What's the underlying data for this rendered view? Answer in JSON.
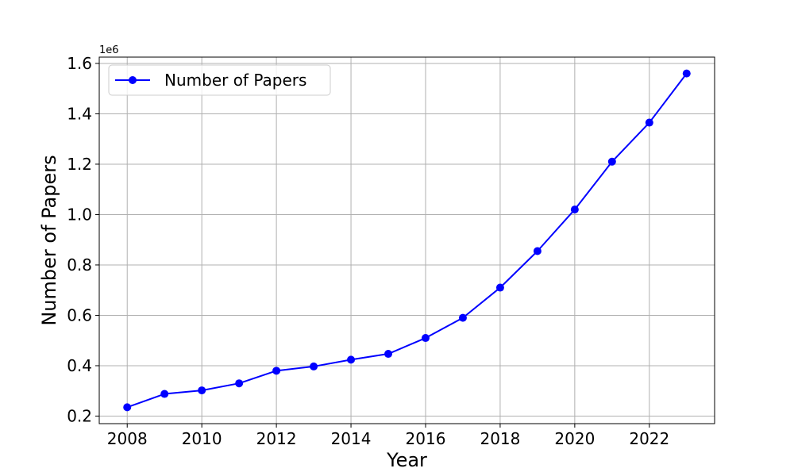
{
  "chart_data": {
    "type": "line",
    "title": "",
    "xlabel": "Year",
    "ylabel": "Number of Papers",
    "y_offset_label": "1e6",
    "x": [
      2008,
      2009,
      2010,
      2011,
      2012,
      2013,
      2014,
      2015,
      2016,
      2017,
      2018,
      2019,
      2020,
      2021,
      2022,
      2023
    ],
    "series": [
      {
        "name": "Number of Papers",
        "color": "#0000ff",
        "marker": "circle",
        "values": [
          235000,
          288000,
          302000,
          330000,
          380000,
          397000,
          424000,
          447000,
          510000,
          590000,
          710000,
          855000,
          1020000,
          1210000,
          1365000,
          1560000
        ]
      }
    ],
    "xlim": [
      2007.25,
      2023.75
    ],
    "ylim": [
      170000,
      1625000
    ],
    "xticks": [
      2008,
      2010,
      2012,
      2014,
      2016,
      2018,
      2020,
      2022
    ],
    "yticks": [
      200000,
      400000,
      600000,
      800000,
      1000000,
      1200000,
      1400000,
      1600000
    ],
    "ytick_labels": [
      "0.2",
      "0.4",
      "0.6",
      "0.8",
      "1.0",
      "1.2",
      "1.4",
      "1.6"
    ],
    "grid": true,
    "legend_position": "upper-left"
  }
}
